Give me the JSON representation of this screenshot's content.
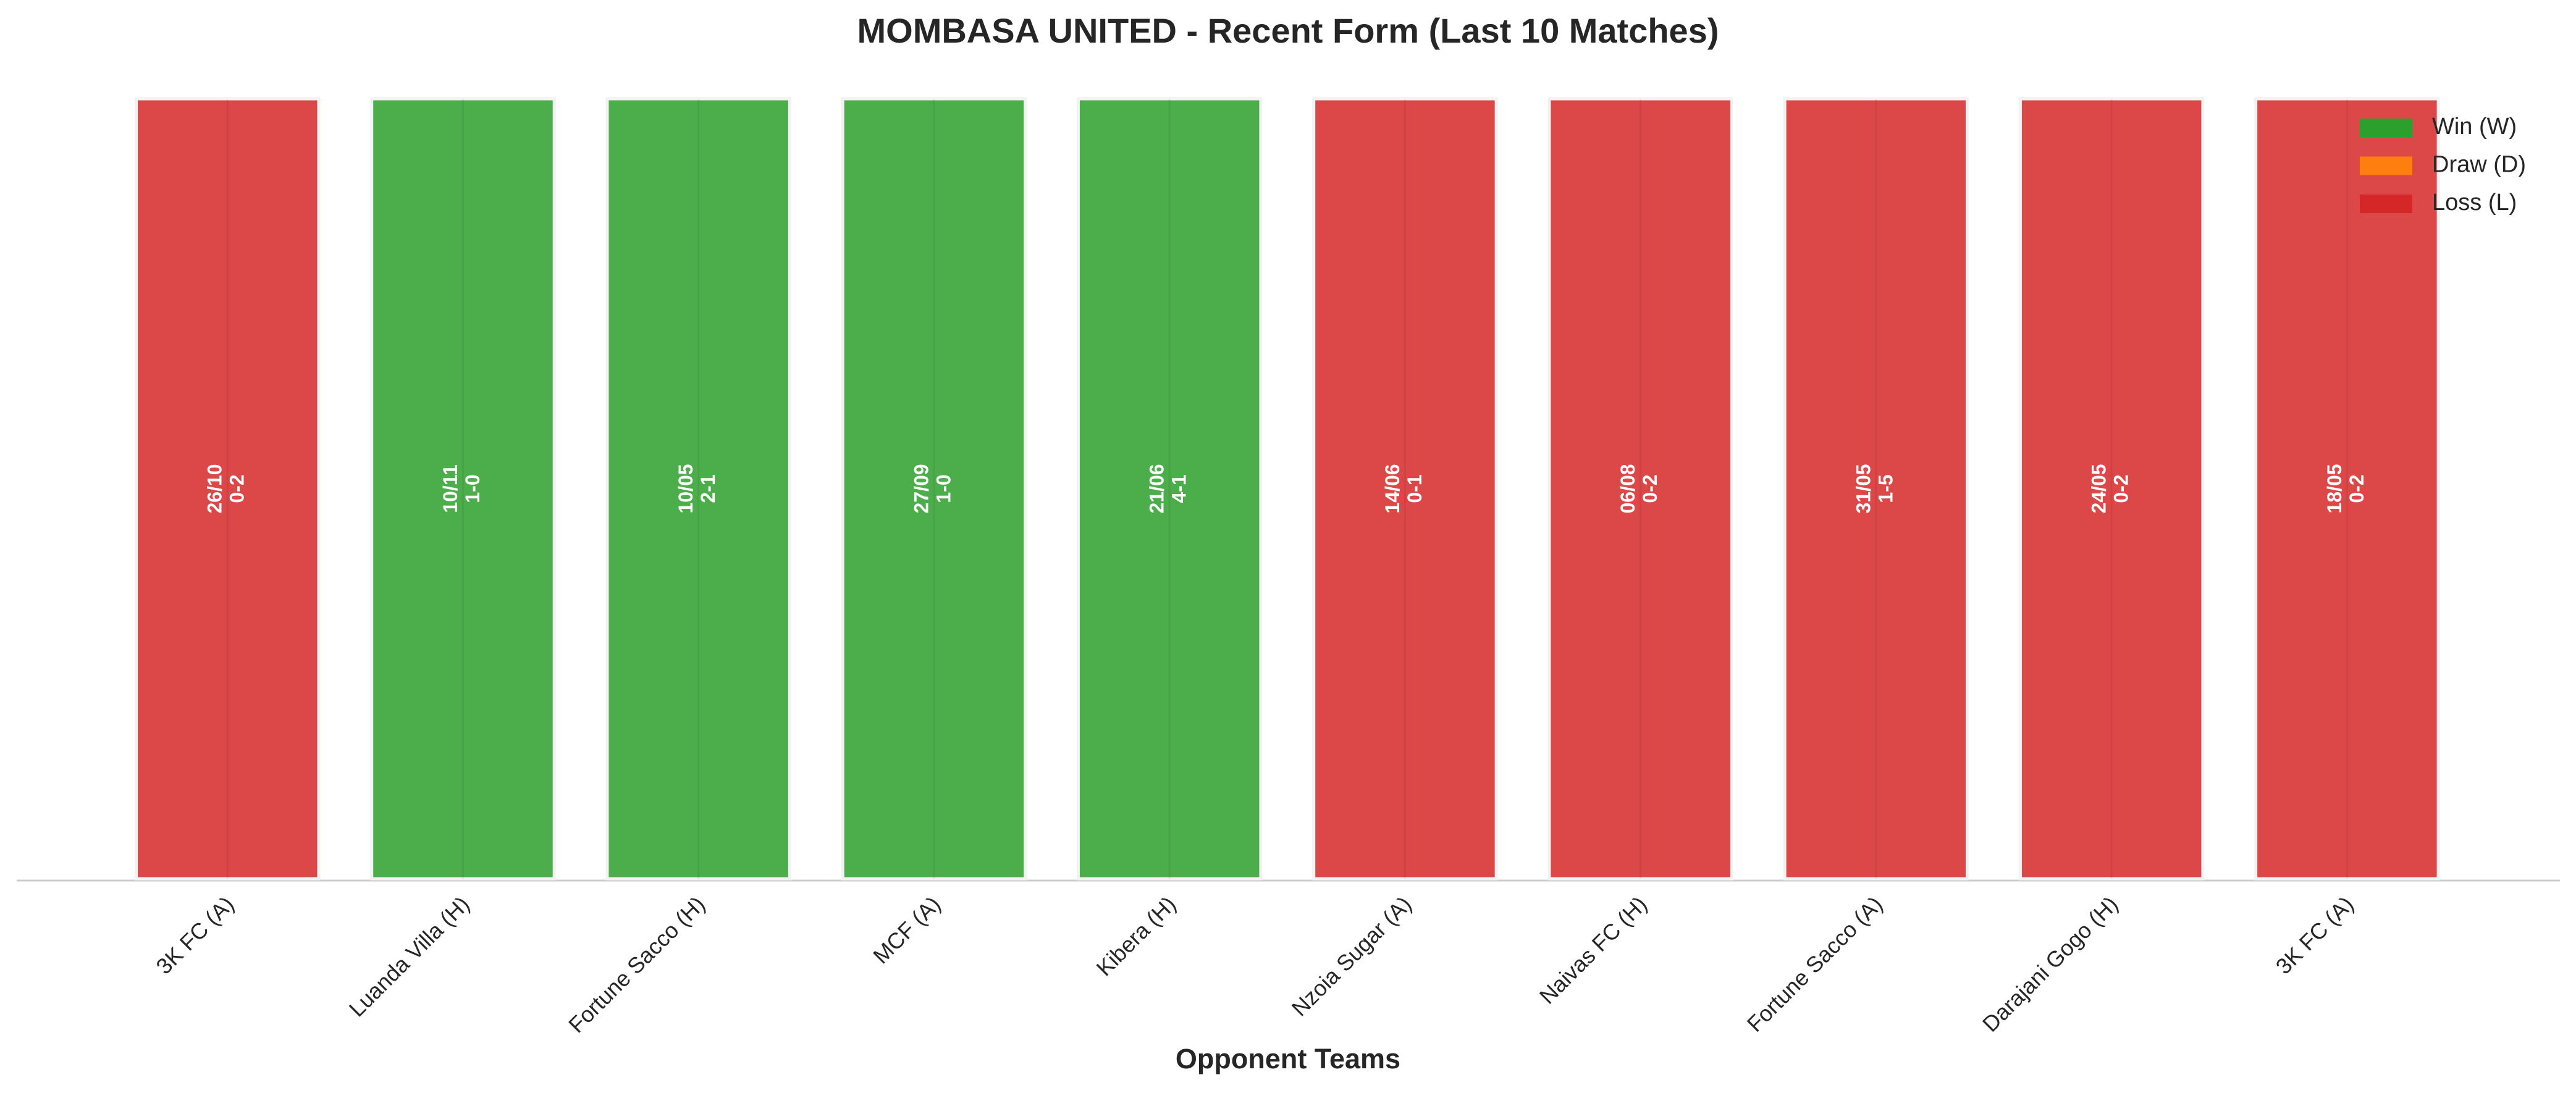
{
  "chart_data": {
    "type": "bar",
    "title": "MOMBASA UNITED - Recent Form (Last 10 Matches)",
    "x_label": "Opponent Teams",
    "categories": [
      "3K FC (A)",
      "Luanda Villa (H)",
      "Fortune Sacco (H)",
      "MCF (A)",
      "Kibera (H)",
      "Nzoia Sugar (A)",
      "Naivas FC (H)",
      "Fortune Sacco (A)",
      "Darajani Gogo (H)",
      "3K FC (A)"
    ],
    "dates": [
      "26/10",
      "10/11",
      "10/05",
      "27/09",
      "21/06",
      "14/06",
      "06/08",
      "31/05",
      "24/05",
      "18/05"
    ],
    "scores": [
      "0-2",
      "1-0",
      "2-1",
      "1-0",
      "4-1",
      "0-1",
      "0-2",
      "1-5",
      "0-2",
      "0-2"
    ],
    "values": [
      1,
      1,
      1,
      1,
      1,
      1,
      1,
      1,
      1,
      1
    ],
    "colors": [
      "#d62728",
      "#2ca02c",
      "#2ca02c",
      "#2ca02c",
      "#2ca02c",
      "#d62728",
      "#d62728",
      "#d62728",
      "#d62728",
      "#d62728"
    ],
    "ylim": [
      0,
      1
    ],
    "legend": [
      {
        "name": "Win (W)",
        "color": "#2ca02c"
      },
      {
        "name": "Draw (D)",
        "color": "#ff7f0e"
      },
      {
        "name": "Loss (L)",
        "color": "#d62728"
      }
    ],
    "legend_position": "upper right",
    "grid": true
  }
}
